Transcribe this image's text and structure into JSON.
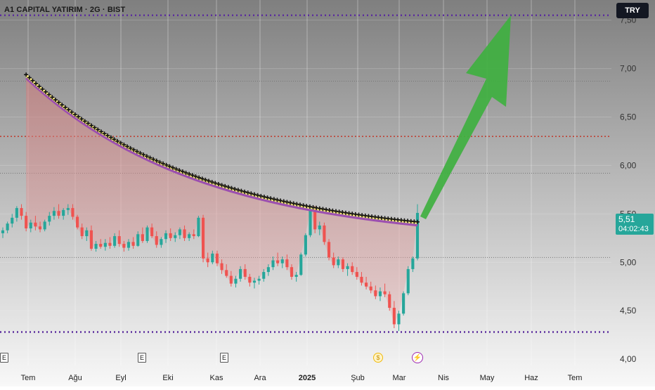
{
  "header": {
    "title": "A1 CAPITAL YATIRIM · 2G · BIST",
    "currency": "TRY"
  },
  "price_tag": {
    "price": "5,51",
    "countdown": "04:02:43"
  },
  "markers": {
    "earnings_label": "E",
    "dividend_label": "$",
    "split_label": "⚡"
  },
  "colors": {
    "up": "#26a69a",
    "down": "#ef5350",
    "trend_line": "#9c4fb0",
    "level_line": "#5b2d9e",
    "arrow": "#3fb040",
    "fill": "#d88b8b"
  },
  "chart_data": {
    "type": "candlestick",
    "title": "A1 CAPITAL YATIRIM · 2G · BIST",
    "x_tick_labels": [
      "Tem",
      "Ağu",
      "Eyl",
      "Eki",
      "Kas",
      "Ara",
      "2025",
      "Şub",
      "Mar",
      "Nis",
      "May",
      "Haz",
      "Tem"
    ],
    "y_tick_labels": [
      "4,00",
      "4,50",
      "5,00",
      "5,50",
      "6,00",
      "6,50",
      "7,00",
      "7,50"
    ],
    "ylim": [
      3.95,
      7.65
    ],
    "grid": true,
    "last_price": 5.51,
    "horizontal_levels": [
      {
        "value": 7.55,
        "style": "dotted-thick",
        "color": "#5b2d9e"
      },
      {
        "value": 6.3,
        "style": "dotted",
        "color": "#c0392b"
      },
      {
        "value": 6.87,
        "style": "dotted-thin",
        "color": "#777777"
      },
      {
        "value": 5.92,
        "style": "dotted-thin",
        "color": "#777777"
      },
      {
        "value": 5.05,
        "style": "dotted-thin",
        "color": "#777777"
      },
      {
        "value": 4.28,
        "style": "dotted-thick",
        "color": "#5b2d9e"
      }
    ],
    "trend_line": {
      "start": {
        "x_index": 5,
        "y": 6.93
      },
      "end": {
        "x_index": 146,
        "y": 5.41
      },
      "shape": "decaying"
    },
    "arrow_target_value": 7.55,
    "candles": [
      [
        5.3,
        5.36,
        5.25,
        5.33
      ],
      [
        5.33,
        5.42,
        5.3,
        5.4
      ],
      [
        5.4,
        5.5,
        5.36,
        5.46
      ],
      [
        5.46,
        5.58,
        5.42,
        5.56
      ],
      [
        5.56,
        5.6,
        5.44,
        5.48
      ],
      [
        5.48,
        5.52,
        5.32,
        5.35
      ],
      [
        5.35,
        5.44,
        5.31,
        5.41
      ],
      [
        5.41,
        5.48,
        5.33,
        5.37
      ],
      [
        5.37,
        5.42,
        5.31,
        5.34
      ],
      [
        5.34,
        5.44,
        5.32,
        5.42
      ],
      [
        5.42,
        5.52,
        5.38,
        5.48
      ],
      [
        5.48,
        5.57,
        5.44,
        5.53
      ],
      [
        5.53,
        5.6,
        5.45,
        5.48
      ],
      [
        5.48,
        5.56,
        5.44,
        5.54
      ],
      [
        5.54,
        5.6,
        5.49,
        5.56
      ],
      [
        5.56,
        5.6,
        5.44,
        5.47
      ],
      [
        5.47,
        5.49,
        5.34,
        5.36
      ],
      [
        5.36,
        5.4,
        5.24,
        5.27
      ],
      [
        5.27,
        5.36,
        5.22,
        5.33
      ],
      [
        5.33,
        5.38,
        5.12,
        5.14
      ],
      [
        5.14,
        5.22,
        5.11,
        5.19
      ],
      [
        5.19,
        5.24,
        5.14,
        5.16
      ],
      [
        5.16,
        5.24,
        5.12,
        5.2
      ],
      [
        5.2,
        5.26,
        5.14,
        5.17
      ],
      [
        5.17,
        5.3,
        5.15,
        5.27
      ],
      [
        5.27,
        5.33,
        5.16,
        5.19
      ],
      [
        5.19,
        5.22,
        5.11,
        5.15
      ],
      [
        5.15,
        5.24,
        5.12,
        5.21
      ],
      [
        5.21,
        5.26,
        5.14,
        5.17
      ],
      [
        5.17,
        5.32,
        5.16,
        5.29
      ],
      [
        5.29,
        5.36,
        5.2,
        5.22
      ],
      [
        5.22,
        5.38,
        5.2,
        5.36
      ],
      [
        5.36,
        5.4,
        5.25,
        5.27
      ],
      [
        5.27,
        5.32,
        5.15,
        5.18
      ],
      [
        5.18,
        5.26,
        5.15,
        5.24
      ],
      [
        5.24,
        5.33,
        5.2,
        5.3
      ],
      [
        5.3,
        5.35,
        5.22,
        5.25
      ],
      [
        5.25,
        5.31,
        5.21,
        5.28
      ],
      [
        5.28,
        5.36,
        5.24,
        5.34
      ],
      [
        5.34,
        5.38,
        5.22,
        5.25
      ],
      [
        5.25,
        5.31,
        5.22,
        5.29
      ],
      [
        5.29,
        5.34,
        5.24,
        5.27
      ],
      [
        5.27,
        5.48,
        5.26,
        5.46
      ],
      [
        5.46,
        5.49,
        5.0,
        5.04
      ],
      [
        5.04,
        5.1,
        4.95,
        5.0
      ],
      [
        5.0,
        5.12,
        4.98,
        5.09
      ],
      [
        5.09,
        5.12,
        4.96,
        4.99
      ],
      [
        4.99,
        5.03,
        4.88,
        4.92
      ],
      [
        4.92,
        4.98,
        4.84,
        4.86
      ],
      [
        4.86,
        4.91,
        4.75,
        4.78
      ],
      [
        4.78,
        4.86,
        4.74,
        4.83
      ],
      [
        4.83,
        4.96,
        4.8,
        4.93
      ],
      [
        4.93,
        4.98,
        4.82,
        4.85
      ],
      [
        4.85,
        4.88,
        4.75,
        4.79
      ],
      [
        4.79,
        4.84,
        4.73,
        4.81
      ],
      [
        4.81,
        4.86,
        4.77,
        4.83
      ],
      [
        4.83,
        4.93,
        4.8,
        4.9
      ],
      [
        4.9,
        4.98,
        4.86,
        4.95
      ],
      [
        4.95,
        5.06,
        4.92,
        5.02
      ],
      [
        5.02,
        5.1,
        4.96,
        4.99
      ],
      [
        4.99,
        5.06,
        4.94,
        5.03
      ],
      [
        5.03,
        5.08,
        4.92,
        4.95
      ],
      [
        4.95,
        4.98,
        4.82,
        4.85
      ],
      [
        4.85,
        4.9,
        4.8,
        4.87
      ],
      [
        4.87,
        5.1,
        4.86,
        5.08
      ],
      [
        5.08,
        5.3,
        5.06,
        5.28
      ],
      [
        5.28,
        5.58,
        5.26,
        5.55
      ],
      [
        5.55,
        5.58,
        5.3,
        5.34
      ],
      [
        5.34,
        5.42,
        5.28,
        5.38
      ],
      [
        5.38,
        5.41,
        5.18,
        5.21
      ],
      [
        5.21,
        5.24,
        5.02,
        5.05
      ],
      [
        5.05,
        5.1,
        4.94,
        4.97
      ],
      [
        4.97,
        5.06,
        4.94,
        5.03
      ],
      [
        5.03,
        5.05,
        4.9,
        4.93
      ],
      [
        4.93,
        4.99,
        4.86,
        4.96
      ],
      [
        4.96,
        5.0,
        4.87,
        4.9
      ],
      [
        4.9,
        4.95,
        4.82,
        4.85
      ],
      [
        4.85,
        4.9,
        4.76,
        4.79
      ],
      [
        4.79,
        4.85,
        4.72,
        4.75
      ],
      [
        4.75,
        4.8,
        4.68,
        4.71
      ],
      [
        4.71,
        4.76,
        4.62,
        4.65
      ],
      [
        4.65,
        4.74,
        4.6,
        4.7
      ],
      [
        4.7,
        4.78,
        4.64,
        4.67
      ],
      [
        4.67,
        4.7,
        4.5,
        4.53
      ],
      [
        4.53,
        4.6,
        4.32,
        4.36
      ],
      [
        4.36,
        4.5,
        4.29,
        4.47
      ],
      [
        4.47,
        4.7,
        4.45,
        4.68
      ],
      [
        4.68,
        4.96,
        4.66,
        4.93
      ],
      [
        4.93,
        5.06,
        4.9,
        5.04
      ],
      [
        5.04,
        5.6,
        5.02,
        5.51
      ]
    ]
  }
}
